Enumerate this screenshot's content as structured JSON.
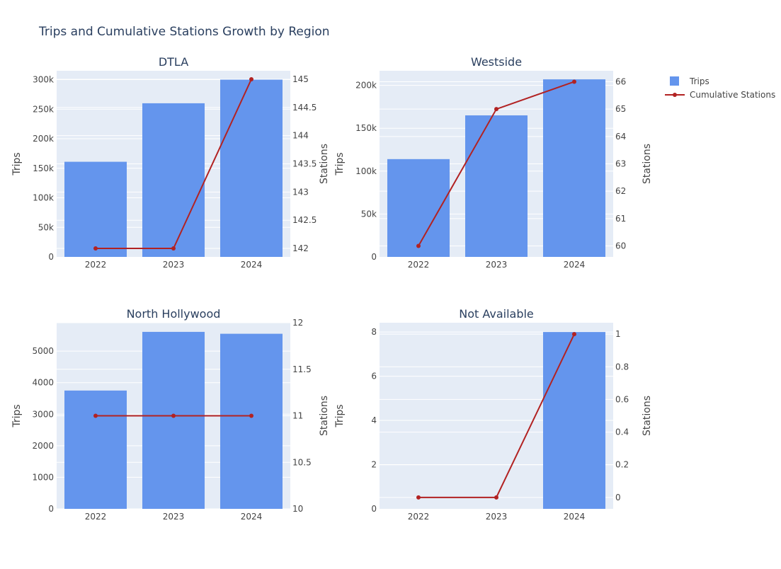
{
  "title": "Trips and Cumulative Stations Growth by Region",
  "legend": {
    "trips_label": "Trips",
    "stations_label": "Cumulative Stations"
  },
  "colors": {
    "bar": "#6495ED",
    "line": "#B22222",
    "plot_bg": "#E5ECF6",
    "grid": "#FFFFFF",
    "text": "#444444",
    "title": "#2a3f5f"
  },
  "chart_data": [
    {
      "type": "bar",
      "title": "DTLA",
      "categories": [
        "2022",
        "2023",
        "2024"
      ],
      "series": [
        {
          "name": "Trips",
          "type": "bar",
          "values": [
            161000,
            260000,
            300000
          ]
        },
        {
          "name": "Cumulative Stations",
          "type": "line",
          "values": [
            142,
            142,
            145
          ]
        }
      ],
      "ylabel": "Trips",
      "y2label": "Stations",
      "ylim": [
        0,
        315000
      ],
      "y2lim": [
        141.85,
        145.15
      ],
      "yticks": [
        0,
        50000,
        100000,
        150000,
        200000,
        250000,
        300000
      ],
      "ytick_labels": [
        "0",
        "50k",
        "100k",
        "150k",
        "200k",
        "250k",
        "300k"
      ],
      "y2ticks": [
        142,
        142.5,
        143,
        143.5,
        144,
        144.5,
        145
      ],
      "y2tick_labels": [
        "142",
        "142.5",
        "143",
        "143.5",
        "144",
        "144.5",
        "145"
      ]
    },
    {
      "type": "bar",
      "title": "Westside",
      "categories": [
        "2022",
        "2023",
        "2024"
      ],
      "series": [
        {
          "name": "Trips",
          "type": "bar",
          "values": [
            114000,
            165000,
            207000
          ]
        },
        {
          "name": "Cumulative Stations",
          "type": "line",
          "values": [
            60,
            65,
            66
          ]
        }
      ],
      "ylabel": "Trips",
      "y2label": "Stations",
      "ylim": [
        0,
        217000
      ],
      "y2lim": [
        59.6,
        66.4
      ],
      "yticks": [
        0,
        50000,
        100000,
        150000,
        200000
      ],
      "ytick_labels": [
        "0",
        "50k",
        "100k",
        "150k",
        "200k"
      ],
      "y2ticks": [
        60,
        61,
        62,
        63,
        64,
        65,
        66
      ],
      "y2tick_labels": [
        "60",
        "61",
        "62",
        "63",
        "64",
        "65",
        "66"
      ]
    },
    {
      "type": "bar",
      "title": "North Hollywood",
      "categories": [
        "2022",
        "2023",
        "2024"
      ],
      "series": [
        {
          "name": "Trips",
          "type": "bar",
          "values": [
            3750,
            5610,
            5550
          ]
        },
        {
          "name": "Cumulative Stations",
          "type": "line",
          "values": [
            11,
            11,
            11
          ]
        }
      ],
      "ylabel": "Trips",
      "y2label": "Stations",
      "ylim": [
        0,
        5900
      ],
      "y2lim": [
        10,
        12
      ],
      "yticks": [
        0,
        1000,
        2000,
        3000,
        4000,
        5000
      ],
      "ytick_labels": [
        "0",
        "1000",
        "2000",
        "3000",
        "4000",
        "5000"
      ],
      "y2ticks": [
        10,
        10.5,
        11,
        11.5,
        12
      ],
      "y2tick_labels": [
        "10",
        "10.5",
        "11",
        "11.5",
        "12"
      ]
    },
    {
      "type": "bar",
      "title": "Not Available",
      "categories": [
        "2022",
        "2023",
        "2024"
      ],
      "series": [
        {
          "name": "Trips",
          "type": "bar",
          "values": [
            0,
            0,
            8
          ]
        },
        {
          "name": "Cumulative Stations",
          "type": "line",
          "values": [
            0,
            0,
            1
          ]
        }
      ],
      "ylabel": "Trips",
      "y2label": "Stations",
      "ylim": [
        0,
        8.42
      ],
      "y2lim": [
        -0.07,
        1.07
      ],
      "yticks": [
        0,
        2,
        4,
        6,
        8
      ],
      "ytick_labels": [
        "0",
        "2",
        "4",
        "6",
        "8"
      ],
      "y2ticks": [
        0,
        0.2,
        0.4,
        0.6,
        0.8,
        1
      ],
      "y2tick_labels": [
        "0",
        "0.2",
        "0.4",
        "0.6",
        "0.8",
        "1"
      ]
    }
  ]
}
